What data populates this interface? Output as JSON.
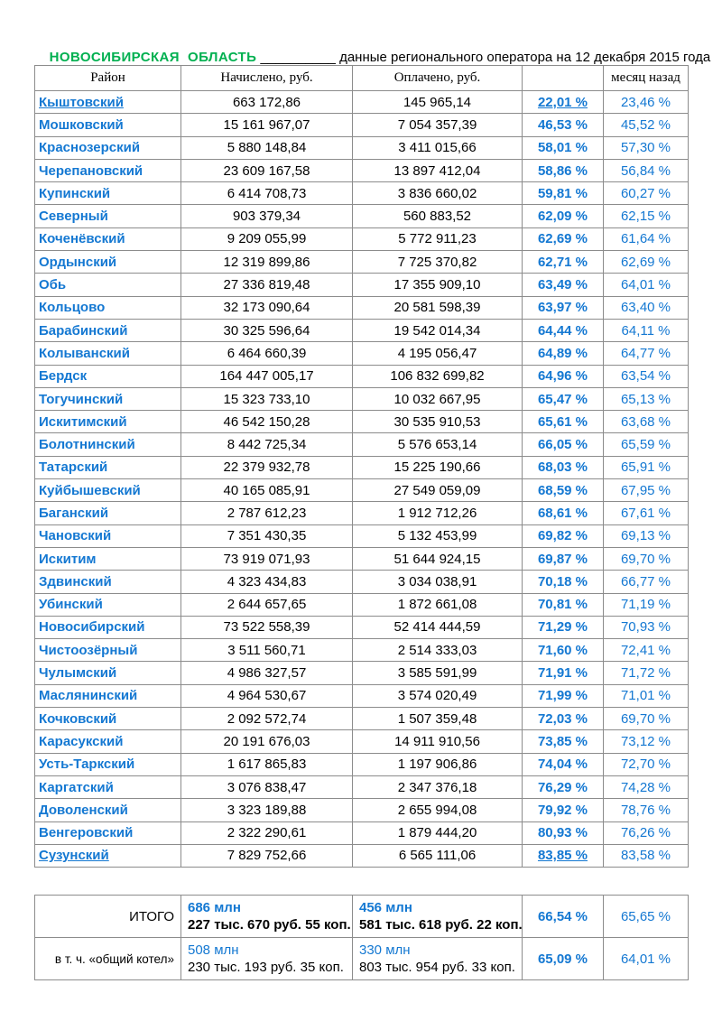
{
  "header": {
    "region": "НОВОСИБИРСКАЯ  ОБЛАСТЬ",
    "separator": " __________ ",
    "caption": "данные регионального оператора на 12 декабря 2015 года"
  },
  "colors": {
    "accent_green": "#00B050",
    "accent_blue": "#1478D2",
    "text_black": "#000000",
    "border_gray": "#8c8c8c"
  },
  "table": {
    "columns": [
      "Район",
      "Начислено, руб.",
      "Оплачено, руб.",
      "",
      "месяц назад"
    ],
    "rows": [
      {
        "district": "Кыштовский",
        "accrued": "663 172,86",
        "paid": "145 965,14",
        "percent": "22,01 %",
        "month_ago": "23,46 %",
        "underlined": true
      },
      {
        "district": "Мошковский",
        "accrued": "15 161 967,07",
        "paid": "7 054 357,39",
        "percent": "46,53 %",
        "month_ago": "45,52 %",
        "underlined": false
      },
      {
        "district": "Краснозерский",
        "accrued": "5 880 148,84",
        "paid": "3 411 015,66",
        "percent": "58,01 %",
        "month_ago": "57,30 %",
        "underlined": false
      },
      {
        "district": "Черепановский",
        "accrued": "23 609 167,58",
        "paid": "13 897 412,04",
        "percent": "58,86 %",
        "month_ago": "56,84 %",
        "underlined": false
      },
      {
        "district": "Купинский",
        "accrued": "6 414 708,73",
        "paid": "3 836 660,02",
        "percent": "59,81 %",
        "month_ago": "60,27 %",
        "underlined": false
      },
      {
        "district": "Северный",
        "accrued": "903 379,34",
        "paid": "560 883,52",
        "percent": "62,09 %",
        "month_ago": "62,15 %",
        "underlined": false
      },
      {
        "district": "Коченёвский",
        "accrued": "9 209 055,99",
        "paid": "5 772 911,23",
        "percent": "62,69 %",
        "month_ago": "61,64 %",
        "underlined": false
      },
      {
        "district": "Ордынский",
        "accrued": "12 319 899,86",
        "paid": "7 725 370,82",
        "percent": "62,71 %",
        "month_ago": "62,69 %",
        "underlined": false
      },
      {
        "district": "Обь",
        "accrued": "27 336 819,48",
        "paid": "17 355 909,10",
        "percent": "63,49 %",
        "month_ago": "64,01 %",
        "underlined": false
      },
      {
        "district": "Кольцово",
        "accrued": "32 173 090,64",
        "paid": "20 581 598,39",
        "percent": "63,97 %",
        "month_ago": "63,40 %",
        "underlined": false
      },
      {
        "district": "Барабинский",
        "accrued": "30 325 596,64",
        "paid": "19 542 014,34",
        "percent": "64,44 %",
        "month_ago": "64,11 %",
        "underlined": false
      },
      {
        "district": "Колыванский",
        "accrued": "6 464 660,39",
        "paid": "4 195 056,47",
        "percent": "64,89 %",
        "month_ago": "64,77 %",
        "underlined": false
      },
      {
        "district": "Бердск",
        "accrued": "164 447 005,17",
        "paid": "106 832 699,82",
        "percent": "64,96 %",
        "month_ago": "63,54 %",
        "underlined": false
      },
      {
        "district": "Тогучинский",
        "accrued": "15 323 733,10",
        "paid": "10 032 667,95",
        "percent": "65,47 %",
        "month_ago": "65,13 %",
        "underlined": false
      },
      {
        "district": "Искитимский",
        "accrued": "46 542 150,28",
        "paid": "30 535 910,53",
        "percent": "65,61 %",
        "month_ago": "63,68 %",
        "underlined": false
      },
      {
        "district": "Болотнинский",
        "accrued": "8 442 725,34",
        "paid": "5 576 653,14",
        "percent": "66,05 %",
        "month_ago": "65,59 %",
        "underlined": false
      },
      {
        "district": "Татарский",
        "accrued": "22 379 932,78",
        "paid": "15 225 190,66",
        "percent": "68,03 %",
        "month_ago": "65,91 %",
        "underlined": false
      },
      {
        "district": "Куйбышевский",
        "accrued": "40 165 085,91",
        "paid": "27 549 059,09",
        "percent": "68,59 %",
        "month_ago": "67,95 %",
        "underlined": false
      },
      {
        "district": "Баганский",
        "accrued": "2 787 612,23",
        "paid": "1 912 712,26",
        "percent": "68,61 %",
        "month_ago": "67,61 %",
        "underlined": false
      },
      {
        "district": "Чановский",
        "accrued": "7 351 430,35",
        "paid": "5 132 453,99",
        "percent": "69,82 %",
        "month_ago": "69,13 %",
        "underlined": false
      },
      {
        "district": "Искитим",
        "accrued": "73 919 071,93",
        "paid": "51 644 924,15",
        "percent": "69,87 %",
        "month_ago": "69,70 %",
        "underlined": false
      },
      {
        "district": "Здвинский",
        "accrued": "4 323 434,83",
        "paid": "3 034 038,91",
        "percent": "70,18 %",
        "month_ago": "66,77 %",
        "underlined": false
      },
      {
        "district": "Убинский",
        "accrued": "2 644 657,65",
        "paid": "1 872 661,08",
        "percent": "70,81 %",
        "month_ago": "71,19 %",
        "underlined": false
      },
      {
        "district": "Новосибирский",
        "accrued": "73 522 558,39",
        "paid": "52 414 444,59",
        "percent": "71,29 %",
        "month_ago": "70,93 %",
        "underlined": false
      },
      {
        "district": "Чистоозёрный",
        "accrued": "3 511 560,71",
        "paid": "2 514 333,03",
        "percent": "71,60 %",
        "month_ago": "72,41 %",
        "underlined": false
      },
      {
        "district": "Чулымский",
        "accrued": "4 986 327,57",
        "paid": "3 585 591,99",
        "percent": "71,91 %",
        "month_ago": "71,72 %",
        "underlined": false
      },
      {
        "district": "Маслянинский",
        "accrued": "4 964 530,67",
        "paid": "3 574 020,49",
        "percent": "71,99 %",
        "month_ago": "71,01 %",
        "underlined": false
      },
      {
        "district": "Кочковский",
        "accrued": "2 092 572,74",
        "paid": "1 507 359,48",
        "percent": "72,03 %",
        "month_ago": "69,70 %",
        "underlined": false
      },
      {
        "district": "Карасукский",
        "accrued": "20 191 676,03",
        "paid": "14 911 910,56",
        "percent": "73,85 %",
        "month_ago": "73,12 %",
        "underlined": false
      },
      {
        "district": "Усть-Таркский",
        "accrued": "1 617 865,83",
        "paid": "1 197 906,86",
        "percent": "74,04 %",
        "month_ago": "72,70 %",
        "underlined": false
      },
      {
        "district": "Каргатский",
        "accrued": "3 076 838,47",
        "paid": "2 347 376,18",
        "percent": "76,29 %",
        "month_ago": "74,28 %",
        "underlined": false
      },
      {
        "district": "Доволенский",
        "accrued": "3 323 189,88",
        "paid": "2 655 994,08",
        "percent": "79,92 %",
        "month_ago": "78,76 %",
        "underlined": false
      },
      {
        "district": "Венгеровский",
        "accrued": "2 322 290,61",
        "paid": "1 879 444,20",
        "percent": "80,93 %",
        "month_ago": "76,26 %",
        "underlined": false
      },
      {
        "district": "Сузунский",
        "accrued": "7 829 752,66",
        "paid": "6 565 111,06",
        "percent": "83,85 %",
        "month_ago": "83,58 %",
        "underlined": true
      }
    ]
  },
  "summary": {
    "rows": [
      {
        "label": "ИТОГО",
        "accrued_top": "686 млн",
        "accrued_bottom": "227 тыс. 670 руб. 55 коп.",
        "paid_top": "456 млн",
        "paid_bottom": "581 тыс. 618 руб. 22 коп.",
        "percent": "66,54 %",
        "month_ago": "65,65 %",
        "bold": true
      },
      {
        "label": "в т. ч. «общий котел»",
        "accrued_top": "508 млн",
        "accrued_bottom": "230 тыс. 193 руб. 35 коп.",
        "paid_top": "330 млн",
        "paid_bottom": "803 тыс. 954 руб. 33 коп.",
        "percent": "65,09 %",
        "month_ago": "64,01 %",
        "bold": false
      }
    ]
  }
}
